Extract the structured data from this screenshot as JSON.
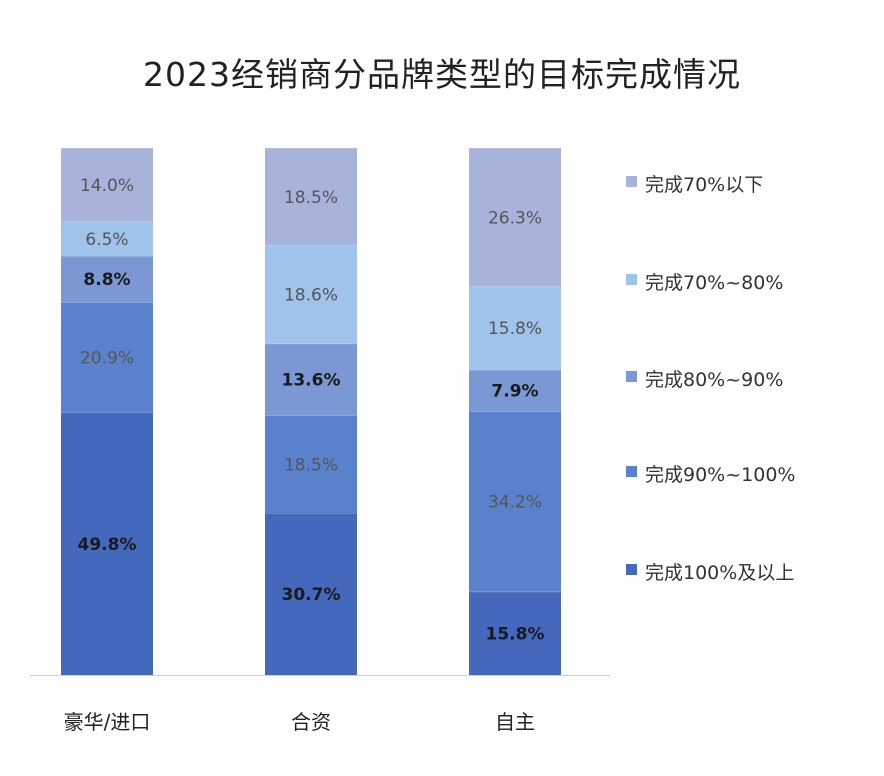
{
  "chart_data": {
    "type": "bar",
    "stacked": true,
    "percent_stacked": true,
    "title": "2023经销商分品牌类型的目标完成情况",
    "categories": [
      "豪华/进口",
      "合资",
      "自主"
    ],
    "series": [
      {
        "name": "完成100%及以上",
        "values": [
          49.8,
          30.7,
          15.8
        ],
        "labels": [
          "49.8%",
          "30.7%",
          "15.8%"
        ],
        "color": "#4468bb",
        "label_bold": true
      },
      {
        "name": "完成90%~100%",
        "values": [
          20.9,
          18.5,
          34.2
        ],
        "labels": [
          "20.9%",
          "18.5%",
          "34.2%"
        ],
        "color": "#5a82cc",
        "label_bold": false
      },
      {
        "name": "完成80%~90%",
        "values": [
          8.8,
          13.6,
          7.9
        ],
        "labels": [
          "8.8%",
          "13.6%",
          "7.9%"
        ],
        "color": "#7b97d4",
        "label_bold": true
      },
      {
        "name": "完成70%~80%",
        "values": [
          6.5,
          18.6,
          15.8
        ],
        "labels": [
          "6.5%",
          "18.6%",
          "15.8%"
        ],
        "color": "#9fc3eb",
        "label_bold": false
      },
      {
        "name": "完成70%以下",
        "values": [
          14.0,
          18.5,
          26.3
        ],
        "labels": [
          "14.0%",
          "18.5%",
          "26.3%"
        ],
        "color": "#a8b3db",
        "label_bold": false
      }
    ],
    "legend_position": "right",
    "legend_order": [
      "完成70%以下",
      "完成70%~80%",
      "完成80%~90%",
      "完成90%~100%",
      "完成100%及以上"
    ],
    "grid": false
  }
}
